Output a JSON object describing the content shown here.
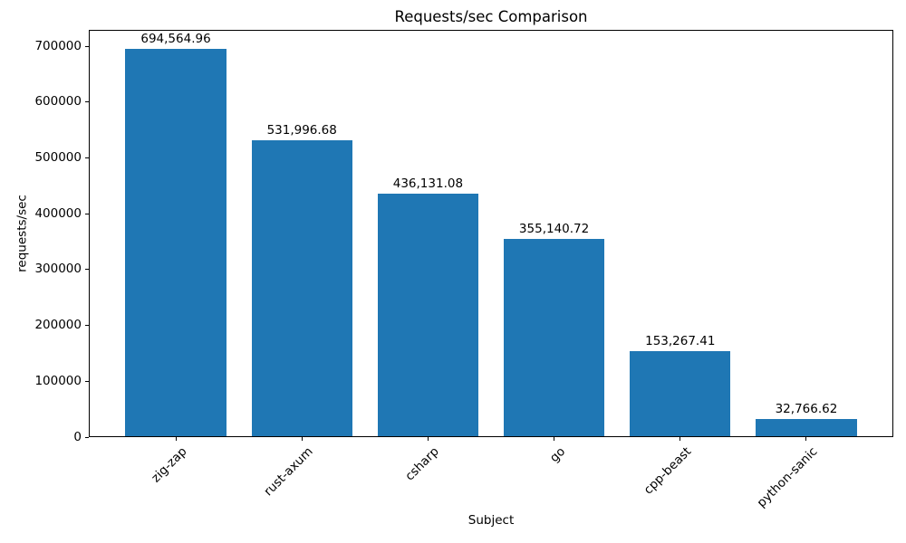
{
  "chart_data": {
    "type": "bar",
    "title": "Requests/sec Comparison",
    "xlabel": "Subject",
    "ylabel": "requests/sec",
    "categories": [
      "zig-zap",
      "rust-axum",
      "csharp",
      "go",
      "cpp-beast",
      "python-sanic"
    ],
    "values": [
      694564.96,
      531996.68,
      436131.08,
      355140.72,
      153267.41,
      32766.62
    ],
    "value_labels": [
      "694,564.96",
      "531,996.68",
      "436,131.08",
      "355,140.72",
      "153,267.41",
      "32,766.62"
    ],
    "ylim": [
      0,
      729293
    ],
    "yticks": [
      0,
      100000,
      200000,
      300000,
      400000,
      500000,
      600000,
      700000
    ],
    "ytick_labels": [
      "0",
      "100000",
      "200000",
      "300000",
      "400000",
      "500000",
      "600000",
      "700000"
    ],
    "bar_color": "#1f77b4",
    "grid": false,
    "legend": null,
    "x_tick_rotation_deg": 45
  }
}
